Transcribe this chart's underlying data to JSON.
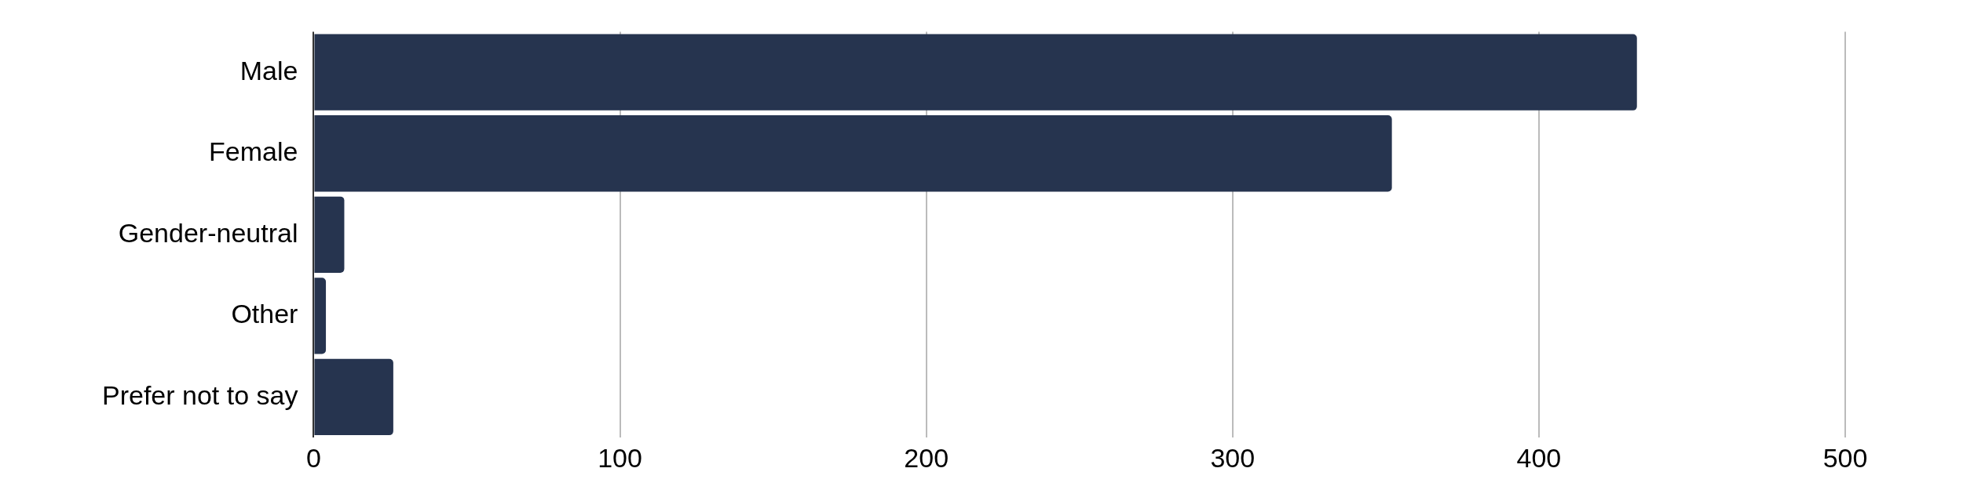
{
  "chart_data": {
    "type": "bar",
    "orientation": "horizontal",
    "categories": [
      "Male",
      "Female",
      "Gender-neutral",
      "Other",
      "Prefer not to say"
    ],
    "values": [
      432,
      352,
      10,
      4,
      26
    ],
    "color": "#26344f",
    "xlim": [
      0,
      500
    ],
    "xticks": [
      0,
      100,
      200,
      300,
      400,
      500
    ],
    "grid": "x",
    "legend": false
  }
}
